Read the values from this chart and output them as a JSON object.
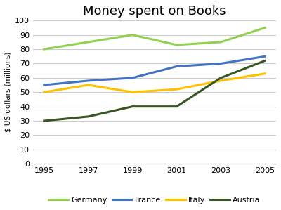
{
  "title": "Money spent on Books",
  "ylabel": "$ US dollars (millions)",
  "years": [
    1995,
    1997,
    1999,
    2001,
    2003,
    2005
  ],
  "series": {
    "Germany": {
      "values": [
        80,
        85,
        90,
        83,
        85,
        95
      ],
      "color": "#92D050",
      "linewidth": 2.2
    },
    "France": {
      "values": [
        55,
        58,
        60,
        68,
        70,
        75
      ],
      "color": "#4472C4",
      "linewidth": 2.2
    },
    "Italy": {
      "values": [
        50,
        55,
        50,
        52,
        58,
        63
      ],
      "color": "#FFC000",
      "linewidth": 2.2
    },
    "Austria": {
      "values": [
        30,
        33,
        40,
        40,
        60,
        72
      ],
      "color": "#375623",
      "linewidth": 2.2
    }
  },
  "ylim": [
    0,
    100
  ],
  "yticks": [
    0,
    10,
    20,
    30,
    40,
    50,
    60,
    70,
    80,
    90,
    100
  ],
  "xticks": [
    1995,
    1997,
    1999,
    2001,
    2003,
    2005
  ],
  "legend_order": [
    "Germany",
    "France",
    "Italy",
    "Austria"
  ],
  "background_color": "#ffffff",
  "grid_color": "#cccccc",
  "title_fontsize": 13,
  "label_fontsize": 7.5,
  "tick_fontsize": 8,
  "legend_fontsize": 8
}
